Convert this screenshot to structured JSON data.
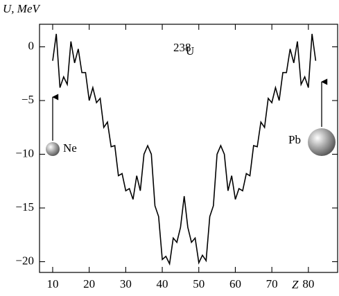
{
  "chart_data": {
    "type": "line",
    "ylabel": "U, MeV",
    "xlabel": "Z",
    "isotope": {
      "mass": "238",
      "symbol": "U"
    },
    "labels": {
      "left": "Ne",
      "right": "Pb"
    },
    "color": "#000000",
    "x": [
      10,
      11,
      12,
      13,
      14,
      15,
      16,
      17,
      18,
      19,
      20,
      21,
      22,
      23,
      24,
      25,
      26,
      27,
      28,
      29,
      30,
      31,
      32,
      33,
      34,
      35,
      36,
      37,
      38,
      39,
      40,
      41,
      42,
      43,
      44,
      45,
      46,
      47,
      48,
      49,
      50,
      51,
      52,
      53,
      54,
      55,
      56,
      57,
      58,
      59,
      60,
      61,
      62,
      63,
      64,
      65,
      66,
      67,
      68,
      69,
      70,
      71,
      72,
      73,
      74,
      75,
      76,
      77,
      78,
      79,
      80,
      81,
      82
    ],
    "values": [
      -1.3,
      1.2,
      -3.8,
      -2.8,
      -3.5,
      0.5,
      -1.5,
      -0.2,
      -2.4,
      -2.4,
      -5.0,
      -3.8,
      -5.2,
      -4.8,
      -7.5,
      -7.0,
      -9.3,
      -9.2,
      -12.0,
      -11.8,
      -13.4,
      -13.2,
      -14.2,
      -12.0,
      -13.4,
      -10.0,
      -9.2,
      -10.0,
      -14.8,
      -15.8,
      -19.8,
      -19.5,
      -20.2,
      -17.8,
      -18.2,
      -16.8,
      -13.9,
      -16.8,
      -18.2,
      -17.8,
      -20.1,
      -19.4,
      -19.9,
      -15.8,
      -14.8,
      -10.0,
      -9.2,
      -10.0,
      -13.4,
      -12.0,
      -14.2,
      -13.2,
      -13.4,
      -11.8,
      -12.0,
      -9.2,
      -9.3,
      -7.0,
      -7.5,
      -4.8,
      -5.2,
      -3.8,
      -5.0,
      -2.4,
      -2.4,
      -0.2,
      -1.5,
      0.5,
      -3.5,
      -2.8,
      -3.8,
      1.2,
      -1.3
    ],
    "xlim": [
      6.4,
      88
    ],
    "ylim": [
      -21,
      2.1
    ],
    "xticks": [
      10,
      20,
      30,
      40,
      50,
      60,
      70,
      80
    ],
    "yticks": [
      {
        "value": -20,
        "label": "−20"
      },
      {
        "value": -15,
        "label": "−15"
      },
      {
        "value": -10,
        "label": "−10"
      },
      {
        "value": -5,
        "label": "−5"
      },
      0
    ]
  }
}
